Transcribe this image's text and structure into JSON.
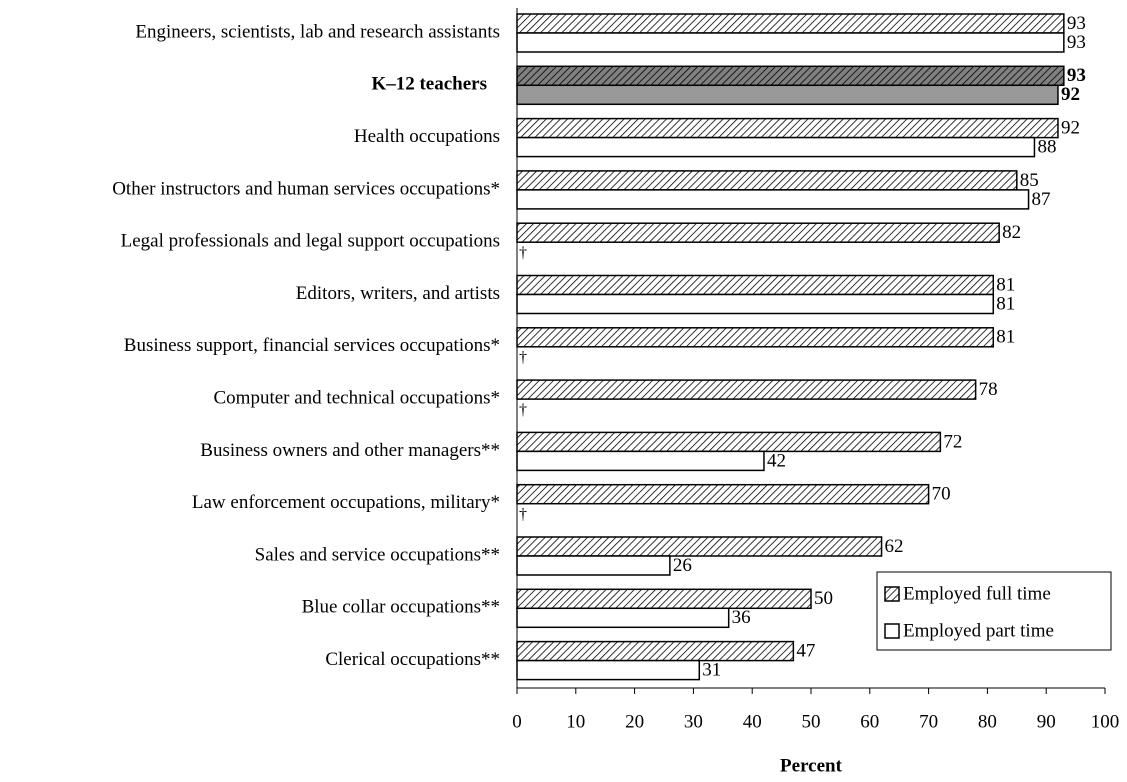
{
  "chart_data": {
    "type": "bar",
    "orientation": "horizontal",
    "x_label": "Percent",
    "categories": [
      "Engineers, scientists, lab and research assistants",
      "K–12 teachers",
      "Health occupations",
      "Other instructors and human services occupations*",
      "Legal professionals and legal support occupations",
      "Editors, writers, and artists",
      "Business support, financial services occupations*",
      "Computer and technical occupations*",
      "Business owners and other managers**",
      "Law enforcement occupations, military*",
      "Sales and service occupations**",
      "Blue collar occupations**",
      "Clerical occupations**"
    ],
    "series": [
      {
        "name": "Employed full time",
        "color": "#ffffff",
        "pattern": "hatch",
        "highlight_color": "#808080",
        "values": [
          93,
          93,
          92,
          85,
          82,
          81,
          81,
          78,
          72,
          70,
          62,
          50,
          47
        ]
      },
      {
        "name": "Employed part time",
        "color": "#ffffff",
        "highlight_color": "#999999",
        "values": [
          93,
          92,
          88,
          87,
          null,
          81,
          null,
          null,
          42,
          null,
          26,
          36,
          31
        ],
        "value_labels": [
          "93",
          "92",
          "88",
          "87",
          "†",
          "81",
          "†",
          "†",
          "42",
          "†",
          "26",
          "36",
          "31"
        ]
      }
    ],
    "highlight": 1,
    "xlim": [
      0,
      100
    ],
    "xticks": [
      0,
      10,
      20,
      30,
      40,
      50,
      60,
      70,
      80,
      90,
      100
    ],
    "grid": false,
    "legend": "lower right"
  }
}
